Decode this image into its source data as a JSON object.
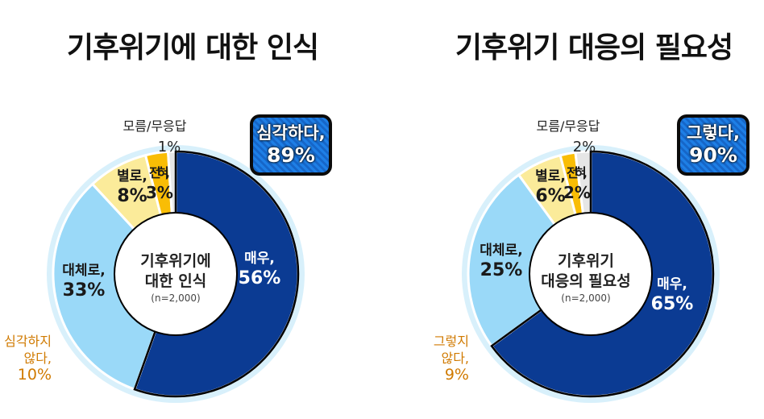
{
  "colors": {
    "very": "#0b3b93",
    "mostly": "#9ad9f8",
    "notmuch": "#fbeb9a",
    "notatall": "#f9bd05",
    "dontknow": "#e6e6e6",
    "ring": "#d8f0fb",
    "orange_text": "#d07a00"
  },
  "chart_data": [
    {
      "type": "pie",
      "title": "기후위기에 대한 인식",
      "center_label": [
        "기후위기에",
        "대한 인식"
      ],
      "n_label": "(n=2,000)",
      "slices": [
        {
          "name": "매우,",
          "value": 56,
          "value_label": "56%"
        },
        {
          "name": "대체로,",
          "value": 33,
          "value_label": "33%"
        },
        {
          "name": "별로,",
          "value": 8,
          "value_label": "8%"
        },
        {
          "name": "전혀,",
          "value": 3,
          "value_label": "3%"
        },
        {
          "name": "모름/무응답",
          "value": 1,
          "value_label": "1%"
        }
      ],
      "summary_positive": {
        "label": "심각하다,",
        "value": 89,
        "value_label": "89%"
      },
      "summary_negative": {
        "label": [
          "심각하지",
          "않다,"
        ],
        "value": 10,
        "value_label": "10%"
      }
    },
    {
      "type": "pie",
      "title": "기후위기 대응의 필요성",
      "center_label": [
        "기후위기",
        "대응의 필요성"
      ],
      "n_label": "(n=2,000)",
      "slices": [
        {
          "name": "매우,",
          "value": 65,
          "value_label": "65%"
        },
        {
          "name": "대체로,",
          "value": 25,
          "value_label": "25%"
        },
        {
          "name": "별로,",
          "value": 6,
          "value_label": "6%"
        },
        {
          "name": "전혀,",
          "value": 2,
          "value_label": "2%"
        },
        {
          "name": "모름/무응답",
          "value": 2,
          "value_label": "2%"
        }
      ],
      "summary_positive": {
        "label": "그렇다,",
        "value": 90,
        "value_label": "90%"
      },
      "summary_negative": {
        "label": [
          "그렇지",
          "않다,"
        ],
        "value": 9,
        "value_label": "9%"
      }
    }
  ]
}
